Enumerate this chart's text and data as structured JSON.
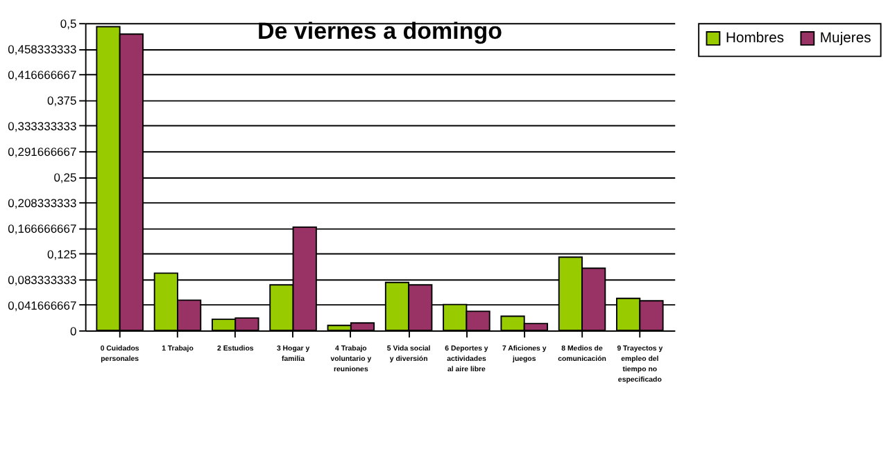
{
  "chart_data": {
    "type": "bar",
    "title": "De viernes a domingo",
    "categories": [
      "0 Cuidados personales",
      "1 Trabajo",
      "2 Estudios",
      "3 Hogar y familia",
      "4 Trabajo voluntario y reuniones",
      "5 Vida social y diversión",
      "6 Deportes y actividades al aire libre",
      "7 Aficiones y juegos",
      "8 Medios de comunicación",
      "9 Trayectos y empleo del tiempo no especificado"
    ],
    "series": [
      {
        "name": "Hombres",
        "color": "#99cc00",
        "values": [
          0.494,
          0.093,
          0.018,
          0.074,
          0.008,
          0.078,
          0.042,
          0.023,
          0.119,
          0.052
        ]
      },
      {
        "name": "Mujeres",
        "color": "#993366",
        "values": [
          0.482,
          0.049,
          0.02,
          0.168,
          0.012,
          0.074,
          0.031,
          0.011,
          0.101,
          0.048
        ]
      }
    ],
    "ylim": [
      0,
      0.5
    ],
    "yticks": [
      {
        "value": 0,
        "label": "0"
      },
      {
        "value": 0.041666667,
        "label": "0,041666667"
      },
      {
        "value": 0.083333333,
        "label": "0,083333333"
      },
      {
        "value": 0.125,
        "label": "0,125"
      },
      {
        "value": 0.166666667,
        "label": "0,166666667"
      },
      {
        "value": 0.208333333,
        "label": "0,208333333"
      },
      {
        "value": 0.25,
        "label": "0,25"
      },
      {
        "value": 0.291666667,
        "label": "0,291666667"
      },
      {
        "value": 0.333333333,
        "label": "0,333333333"
      },
      {
        "value": 0.375,
        "label": "0,375"
      },
      {
        "value": 0.416666667,
        "label": "0,416666667"
      },
      {
        "value": 0.458333333,
        "label": "0,458333333"
      },
      {
        "value": 0.5,
        "label": "0,5"
      }
    ],
    "grid": "y",
    "legend": "right"
  }
}
